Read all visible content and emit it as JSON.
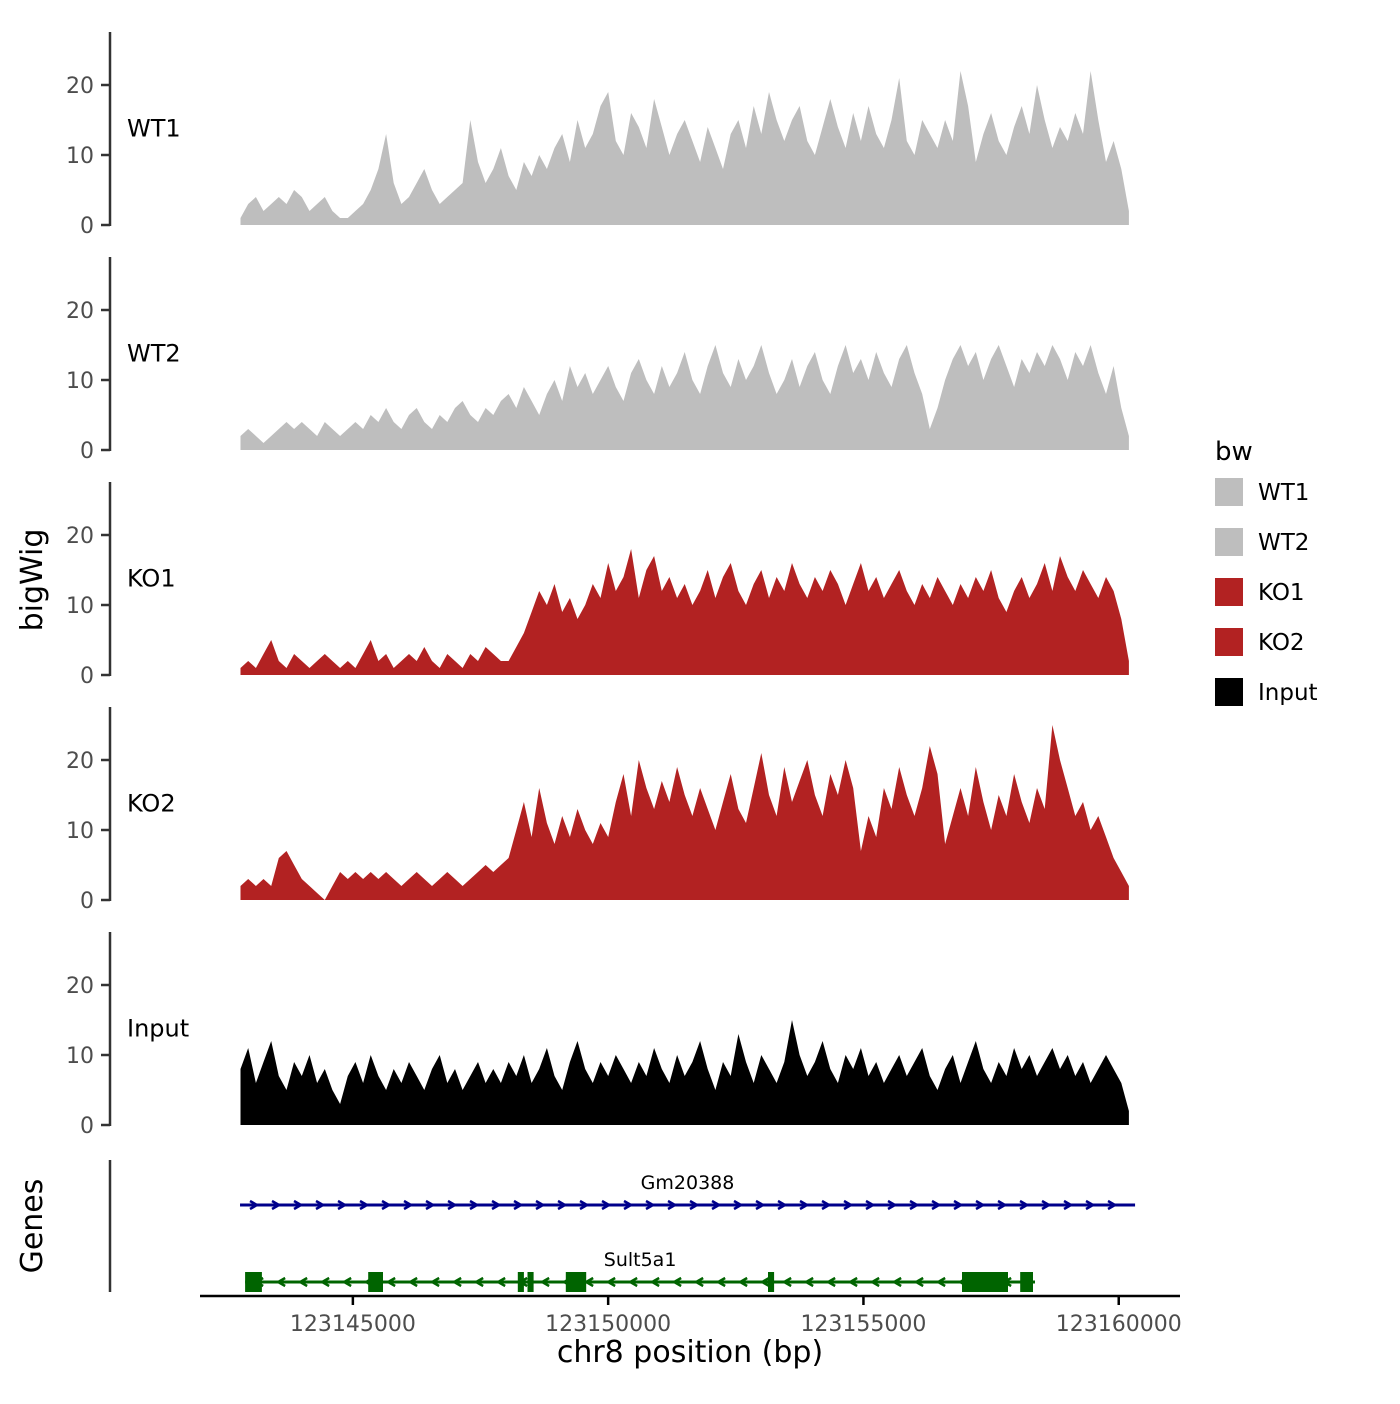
{
  "chart_data": {
    "type": "area",
    "title": "",
    "xlabel": "chr8 position (bp)",
    "ylabel": "bigWig",
    "xlim": [
      123140400,
      123161200
    ],
    "ylim": [
      0,
      27
    ],
    "x_ticks": [
      123145000,
      123150000,
      123155000,
      123160000
    ],
    "y_ticks": [
      0,
      10,
      20
    ],
    "x_start": 123142800,
    "x_step": 150,
    "series": [
      {
        "name": "WT1",
        "color": "#bebebe",
        "values": [
          1,
          3,
          4,
          2,
          3,
          4,
          3,
          5,
          4,
          2,
          3,
          4,
          2,
          1,
          1,
          2,
          3,
          5,
          8,
          13,
          6,
          3,
          4,
          6,
          8,
          5,
          3,
          4,
          5,
          6,
          15,
          9,
          6,
          8,
          11,
          7,
          5,
          9,
          7,
          10,
          8,
          11,
          13,
          9,
          15,
          11,
          13,
          17,
          19,
          12,
          10,
          16,
          14,
          11,
          18,
          14,
          10,
          13,
          15,
          12,
          9,
          14,
          11,
          8,
          13,
          15,
          11,
          17,
          13,
          19,
          15,
          12,
          15,
          17,
          12,
          10,
          14,
          18,
          14,
          11,
          16,
          12,
          17,
          13,
          11,
          15,
          21,
          12,
          10,
          15,
          13,
          11,
          15,
          12,
          22,
          17,
          9,
          13,
          16,
          12,
          10,
          14,
          17,
          13,
          20,
          15,
          11,
          14,
          12,
          16,
          13,
          22,
          15,
          9,
          12,
          8,
          2
        ]
      },
      {
        "name": "WT2",
        "color": "#bebebe",
        "values": [
          2,
          3,
          2,
          1,
          2,
          3,
          4,
          3,
          4,
          3,
          2,
          4,
          3,
          2,
          3,
          4,
          3,
          5,
          4,
          6,
          4,
          3,
          5,
          6,
          4,
          3,
          5,
          4,
          6,
          7,
          5,
          4,
          6,
          5,
          7,
          8,
          6,
          9,
          7,
          5,
          8,
          10,
          7,
          12,
          9,
          11,
          8,
          10,
          12,
          9,
          7,
          11,
          13,
          10,
          8,
          12,
          9,
          11,
          14,
          10,
          8,
          12,
          15,
          11,
          9,
          13,
          10,
          12,
          15,
          11,
          8,
          10,
          13,
          9,
          12,
          14,
          10,
          8,
          12,
          15,
          11,
          13,
          10,
          14,
          11,
          9,
          13,
          15,
          11,
          8,
          3,
          6,
          10,
          13,
          15,
          12,
          14,
          10,
          13,
          15,
          12,
          9,
          13,
          11,
          14,
          12,
          15,
          13,
          10,
          14,
          12,
          15,
          11,
          8,
          12,
          6,
          2
        ]
      },
      {
        "name": "KO1",
        "color": "#b22222",
        "values": [
          1,
          2,
          1,
          3,
          5,
          2,
          1,
          3,
          2,
          1,
          2,
          3,
          2,
          1,
          2,
          1,
          3,
          5,
          2,
          3,
          1,
          2,
          3,
          2,
          4,
          2,
          1,
          3,
          2,
          1,
          3,
          2,
          4,
          3,
          2,
          2,
          4,
          6,
          9,
          12,
          10,
          13,
          9,
          11,
          8,
          10,
          13,
          11,
          16,
          12,
          14,
          18,
          11,
          15,
          17,
          12,
          14,
          11,
          13,
          10,
          12,
          15,
          11,
          14,
          16,
          12,
          10,
          13,
          15,
          11,
          14,
          12,
          16,
          13,
          11,
          14,
          12,
          15,
          13,
          10,
          13,
          16,
          12,
          14,
          11,
          13,
          15,
          12,
          10,
          13,
          11,
          14,
          12,
          10,
          13,
          11,
          14,
          12,
          15,
          11,
          9,
          12,
          14,
          11,
          13,
          16,
          12,
          17,
          14,
          12,
          15,
          13,
          11,
          14,
          12,
          8,
          2
        ]
      },
      {
        "name": "KO2",
        "color": "#b22222",
        "values": [
          2,
          3,
          2,
          3,
          2,
          6,
          7,
          5,
          3,
          2,
          1,
          0,
          2,
          4,
          3,
          4,
          3,
          4,
          3,
          4,
          3,
          2,
          3,
          4,
          3,
          2,
          3,
          4,
          3,
          2,
          3,
          4,
          5,
          4,
          5,
          6,
          10,
          14,
          9,
          16,
          11,
          8,
          12,
          9,
          13,
          10,
          8,
          11,
          9,
          14,
          18,
          12,
          20,
          16,
          13,
          17,
          14,
          19,
          15,
          12,
          16,
          13,
          10,
          14,
          18,
          13,
          11,
          16,
          21,
          15,
          12,
          19,
          14,
          17,
          20,
          15,
          12,
          18,
          15,
          20,
          16,
          7,
          12,
          9,
          16,
          13,
          19,
          15,
          12,
          16,
          22,
          18,
          8,
          12,
          16,
          12,
          19,
          14,
          10,
          15,
          12,
          18,
          14,
          11,
          16,
          13,
          25,
          20,
          16,
          12,
          14,
          10,
          12,
          9,
          6,
          4,
          2
        ]
      },
      {
        "name": "Input",
        "color": "#000000",
        "values": [
          8,
          11,
          6,
          9,
          12,
          7,
          5,
          9,
          7,
          10,
          6,
          8,
          5,
          3,
          7,
          9,
          6,
          10,
          7,
          5,
          8,
          6,
          9,
          7,
          5,
          8,
          10,
          6,
          8,
          5,
          7,
          9,
          6,
          8,
          6,
          9,
          7,
          10,
          6,
          8,
          11,
          7,
          5,
          9,
          12,
          8,
          6,
          9,
          7,
          10,
          8,
          6,
          9,
          7,
          11,
          8,
          6,
          10,
          7,
          9,
          12,
          8,
          5,
          9,
          7,
          13,
          9,
          6,
          10,
          8,
          6,
          9,
          15,
          10,
          7,
          9,
          12,
          8,
          6,
          10,
          8,
          11,
          7,
          9,
          6,
          8,
          10,
          7,
          9,
          11,
          7,
          5,
          8,
          10,
          6,
          9,
          12,
          8,
          6,
          9,
          7,
          11,
          8,
          10,
          7,
          9,
          11,
          8,
          10,
          7,
          9,
          6,
          8,
          10,
          8,
          6,
          2
        ]
      }
    ],
    "genes": {
      "label": "Genes",
      "items": [
        {
          "name": "Gm20388",
          "color": "#00008B",
          "strand": "+",
          "start": 123142790,
          "end": 123160320,
          "exons": []
        },
        {
          "name": "Sult5a1",
          "color": "#006400",
          "strand": "-",
          "start": 123142890,
          "end": 123158360,
          "exons": [
            [
              123142890,
              123143220
            ],
            [
              123145300,
              123145590
            ],
            [
              123148230,
              123148350
            ],
            [
              123148420,
              123148540
            ],
            [
              123149170,
              123149570
            ],
            [
              123153130,
              123153250
            ],
            [
              123156930,
              123157830
            ],
            [
              123158070,
              123158320
            ]
          ]
        }
      ]
    },
    "legend": {
      "title": "bw",
      "position": "right",
      "entries": [
        {
          "label": "WT1",
          "color": "#bebebe"
        },
        {
          "label": "WT2",
          "color": "#bebebe"
        },
        {
          "label": "KO1",
          "color": "#b22222"
        },
        {
          "label": "KO2",
          "color": "#b22222"
        },
        {
          "label": "Input",
          "color": "#000000"
        }
      ]
    }
  }
}
